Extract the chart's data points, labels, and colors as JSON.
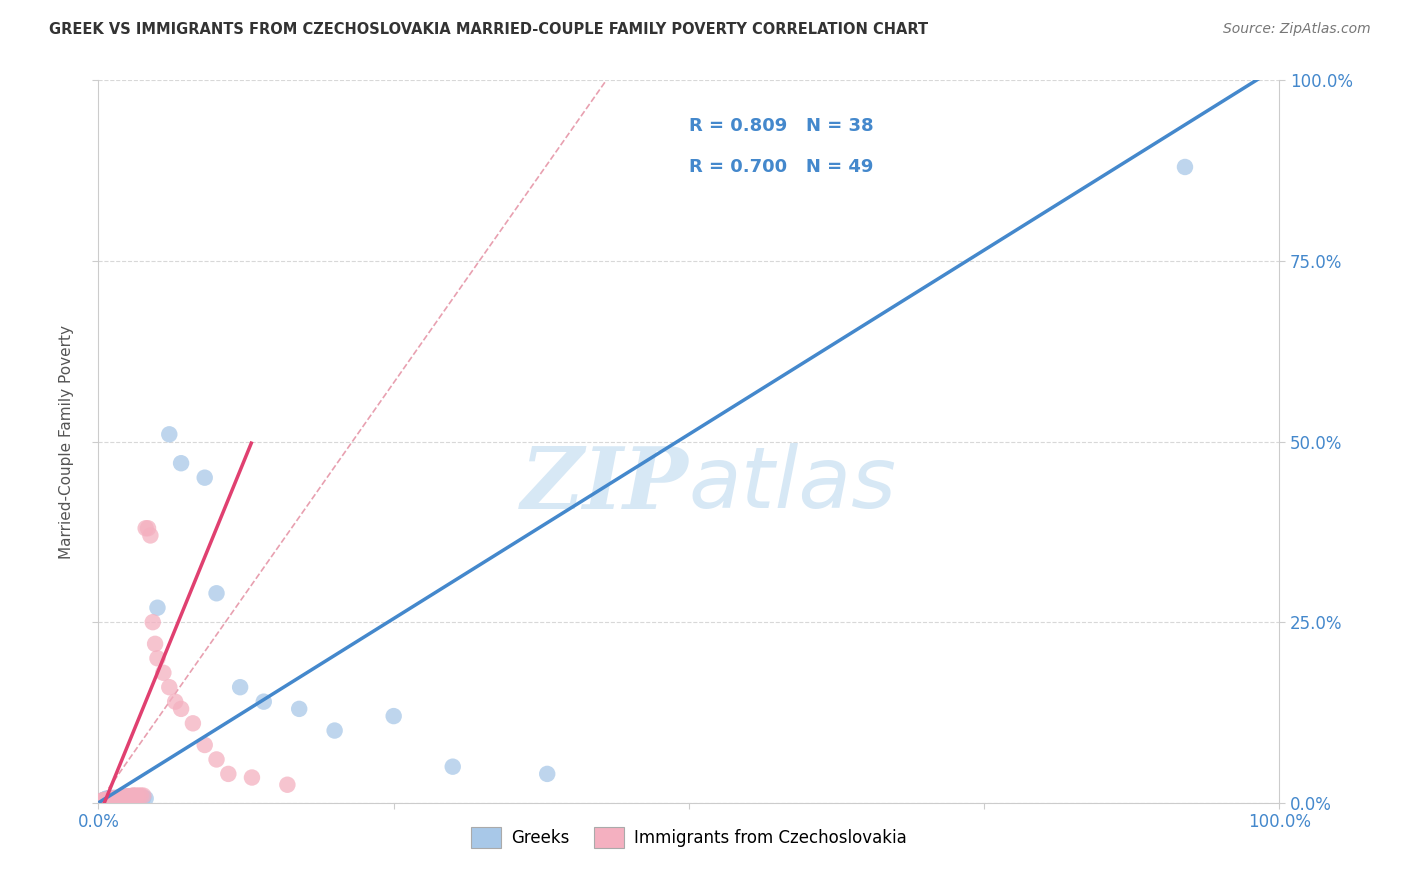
{
  "title": "GREEK VS IMMIGRANTS FROM CZECHOSLOVAKIA MARRIED-COUPLE FAMILY POVERTY CORRELATION CHART",
  "source": "Source: ZipAtlas.com",
  "ylabel": "Married-Couple Family Poverty",
  "xlim": [
    0,
    1
  ],
  "ylim": [
    0,
    1
  ],
  "y_tick_vals": [
    0,
    0.25,
    0.5,
    0.75,
    1.0
  ],
  "y_tick_labels": [
    "0.0%",
    "25.0%",
    "50.0%",
    "75.0%",
    "100.0%"
  ],
  "x_tick_vals": [
    0,
    0.25,
    0.5,
    0.75,
    1.0
  ],
  "x_tick_labels": [
    "0.0%",
    "",
    "",
    "",
    "100.0%"
  ],
  "greek_R": 0.809,
  "greek_N": 38,
  "czech_R": 0.7,
  "czech_N": 49,
  "greek_color": "#a8c8e8",
  "czech_color": "#f4b0c0",
  "greek_line_color": "#4488cc",
  "czech_line_color": "#e04070",
  "diag_line_color": "#e8a0b0",
  "watermark_color": "#d0e4f4",
  "background_color": "#ffffff",
  "greek_scatter_x": [
    0.003,
    0.005,
    0.006,
    0.007,
    0.008,
    0.009,
    0.01,
    0.011,
    0.012,
    0.013,
    0.014,
    0.015,
    0.016,
    0.017,
    0.018,
    0.02,
    0.022,
    0.024,
    0.026,
    0.028,
    0.03,
    0.032,
    0.035,
    0.038,
    0.04,
    0.05,
    0.06,
    0.07,
    0.09,
    0.1,
    0.12,
    0.14,
    0.17,
    0.2,
    0.25,
    0.3,
    0.38,
    0.92
  ],
  "greek_scatter_y": [
    0.003,
    0.004,
    0.005,
    0.006,
    0.004,
    0.005,
    0.006,
    0.005,
    0.006,
    0.007,
    0.005,
    0.006,
    0.007,
    0.006,
    0.005,
    0.007,
    0.006,
    0.008,
    0.007,
    0.005,
    0.008,
    0.009,
    0.008,
    0.007,
    0.006,
    0.27,
    0.51,
    0.47,
    0.45,
    0.29,
    0.16,
    0.14,
    0.13,
    0.1,
    0.12,
    0.05,
    0.04,
    0.88
  ],
  "czech_scatter_x": [
    0.002,
    0.003,
    0.004,
    0.005,
    0.006,
    0.007,
    0.008,
    0.009,
    0.01,
    0.011,
    0.012,
    0.013,
    0.014,
    0.015,
    0.016,
    0.017,
    0.018,
    0.019,
    0.02,
    0.021,
    0.022,
    0.023,
    0.024,
    0.025,
    0.026,
    0.027,
    0.028,
    0.029,
    0.03,
    0.032,
    0.034,
    0.036,
    0.038,
    0.04,
    0.042,
    0.044,
    0.046,
    0.048,
    0.05,
    0.055,
    0.06,
    0.065,
    0.07,
    0.08,
    0.09,
    0.1,
    0.11,
    0.13,
    0.16
  ],
  "czech_scatter_y": [
    0.002,
    0.003,
    0.003,
    0.004,
    0.003,
    0.004,
    0.004,
    0.005,
    0.005,
    0.005,
    0.005,
    0.006,
    0.006,
    0.006,
    0.006,
    0.007,
    0.007,
    0.007,
    0.008,
    0.008,
    0.008,
    0.008,
    0.009,
    0.009,
    0.009,
    0.009,
    0.009,
    0.01,
    0.01,
    0.01,
    0.01,
    0.01,
    0.01,
    0.38,
    0.38,
    0.37,
    0.25,
    0.22,
    0.2,
    0.18,
    0.16,
    0.14,
    0.13,
    0.11,
    0.08,
    0.06,
    0.04,
    0.035,
    0.025
  ],
  "greek_line_x0": 0.0,
  "greek_line_y0": 0.0,
  "greek_line_x1": 1.0,
  "greek_line_y1": 1.02,
  "czech_line_x0": 0.0,
  "czech_line_y0": -0.02,
  "czech_line_x1": 0.13,
  "czech_line_y1": 0.5,
  "diag_line_x0": 0.0,
  "diag_line_y0": 0.0,
  "diag_line_x1": 0.43,
  "diag_line_y1": 1.0
}
